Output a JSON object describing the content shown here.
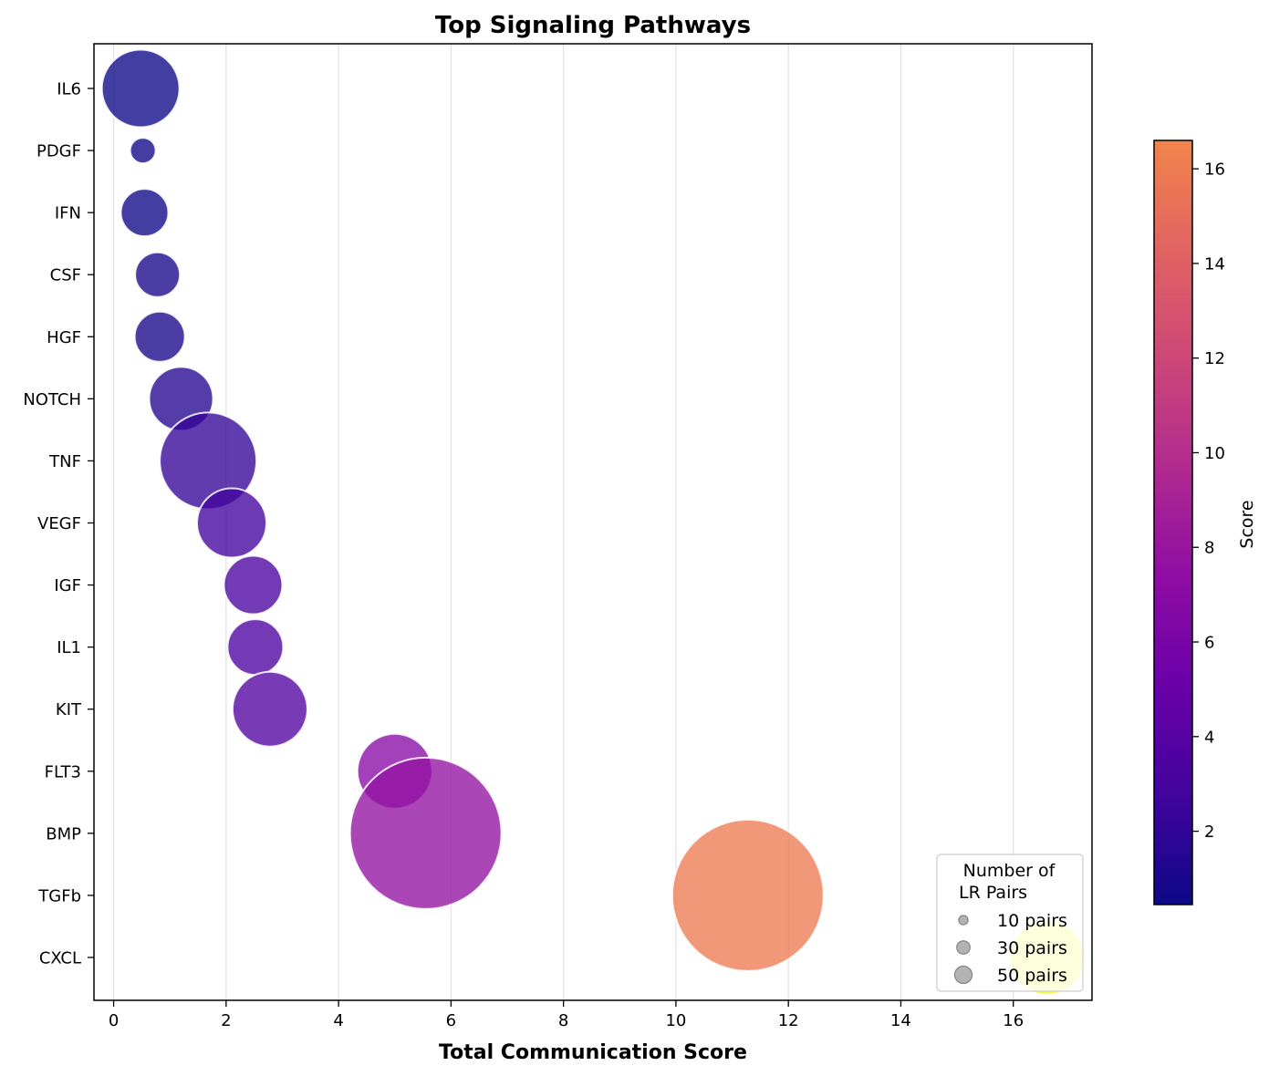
{
  "chart_data": {
    "type": "scatter",
    "title": "Top Signaling Pathways",
    "xlabel": "Total Communication Score",
    "ylabel": "",
    "xlim": [
      -0.35,
      17.4
    ],
    "x_ticks": [
      0,
      2,
      4,
      6,
      8,
      10,
      12,
      14,
      16
    ],
    "grid": "vertical",
    "colormap": "plasma",
    "colorbar": {
      "label": "Score",
      "range": [
        0.45,
        16.6
      ],
      "ticks": [
        2,
        4,
        6,
        8,
        10,
        12,
        14,
        16
      ]
    },
    "categories": [
      "IL6",
      "PDGF",
      "IFN",
      "CSF",
      "HGF",
      "NOTCH",
      "TNF",
      "VEGF",
      "IGF",
      "IL1",
      "KIT",
      "FLT3",
      "BMP",
      "TGFb",
      "CXCL"
    ],
    "points": [
      {
        "category": "IL6",
        "x": 0.48,
        "pairs": 26,
        "score": 0.48
      },
      {
        "category": "PDGF",
        "x": 0.52,
        "pairs": 7,
        "score": 0.52
      },
      {
        "category": "IFN",
        "x": 0.55,
        "pairs": 15,
        "score": 0.55
      },
      {
        "category": "CSF",
        "x": 0.78,
        "pairs": 14,
        "score": 0.78
      },
      {
        "category": "HGF",
        "x": 0.82,
        "pairs": 16,
        "score": 0.82
      },
      {
        "category": "NOTCH",
        "x": 1.2,
        "pairs": 21,
        "score": 1.2
      },
      {
        "category": "TNF",
        "x": 1.68,
        "pairs": 33,
        "score": 1.68
      },
      {
        "category": "VEGF",
        "x": 2.1,
        "pairs": 23,
        "score": 2.1
      },
      {
        "category": "IGF",
        "x": 2.48,
        "pairs": 19,
        "score": 2.48
      },
      {
        "category": "IL1",
        "x": 2.52,
        "pairs": 18,
        "score": 2.52
      },
      {
        "category": "KIT",
        "x": 2.78,
        "pairs": 25,
        "score": 2.78
      },
      {
        "category": "FLT3",
        "x": 5.0,
        "pairs": 25,
        "score": 5.0
      },
      {
        "category": "BMP",
        "x": 5.55,
        "pairs": 53,
        "score": 5.55
      },
      {
        "category": "TGFb",
        "x": 11.28,
        "pairs": 53,
        "score": 11.28
      },
      {
        "category": "CXCL",
        "x": 16.6,
        "pairs": 25,
        "score": 16.6
      }
    ],
    "size_legend": {
      "title_lines": [
        "Number of",
        "LR Pairs"
      ],
      "entries": [
        {
          "label": "10 pairs",
          "pairs": 10
        },
        {
          "label": "30 pairs",
          "pairs": 30
        },
        {
          "label": "50 pairs",
          "pairs": 50
        }
      ],
      "placement": "lower-right"
    }
  }
}
